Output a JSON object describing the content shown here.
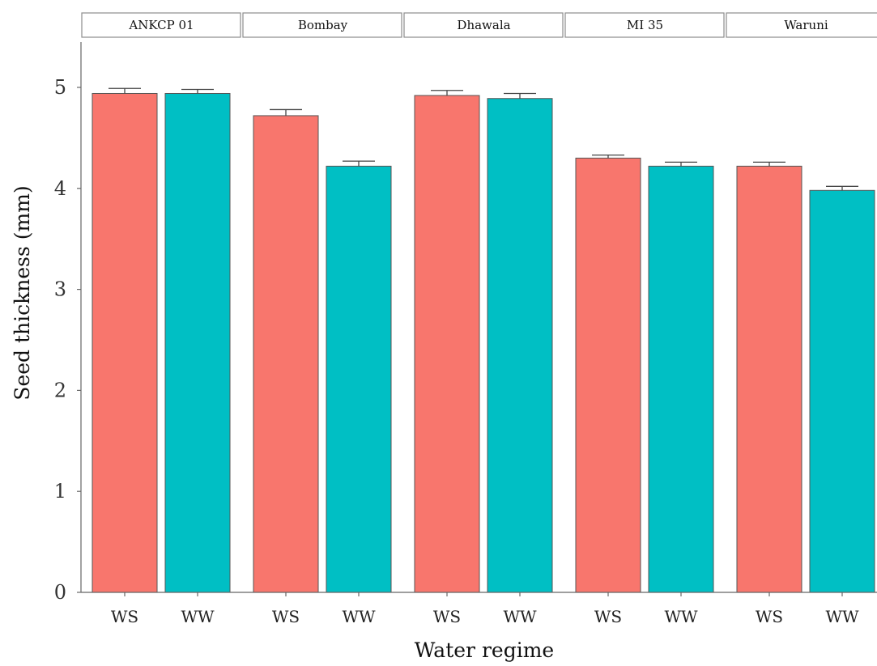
{
  "chart_data": {
    "type": "bar",
    "facets": [
      "ANKCP 01",
      "Bombay",
      "Dhawala",
      "MI 35",
      "Waruni"
    ],
    "categories": [
      "WS",
      "WW"
    ],
    "series": [
      {
        "facet": "ANKCP 01",
        "values": [
          4.94,
          4.94
        ],
        "errors": [
          0.05,
          0.04
        ]
      },
      {
        "facet": "Bombay",
        "values": [
          4.72,
          4.22
        ],
        "errors": [
          0.06,
          0.05
        ]
      },
      {
        "facet": "Dhawala",
        "values": [
          4.92,
          4.89
        ],
        "errors": [
          0.05,
          0.05
        ]
      },
      {
        "facet": "MI 35",
        "values": [
          4.3,
          4.22
        ],
        "errors": [
          0.03,
          0.04
        ]
      },
      {
        "facet": "Waruni",
        "values": [
          4.22,
          3.98
        ],
        "errors": [
          0.04,
          0.04
        ]
      }
    ],
    "xlabel": "Water regime",
    "ylabel": "Seed thickness (mm)",
    "ylim": [
      0,
      5.45
    ],
    "yticks": [
      0,
      1,
      2,
      3,
      4,
      5
    ],
    "grid": false,
    "colors": {
      "WS": "#F8766D",
      "WW": "#00BFC4"
    }
  }
}
